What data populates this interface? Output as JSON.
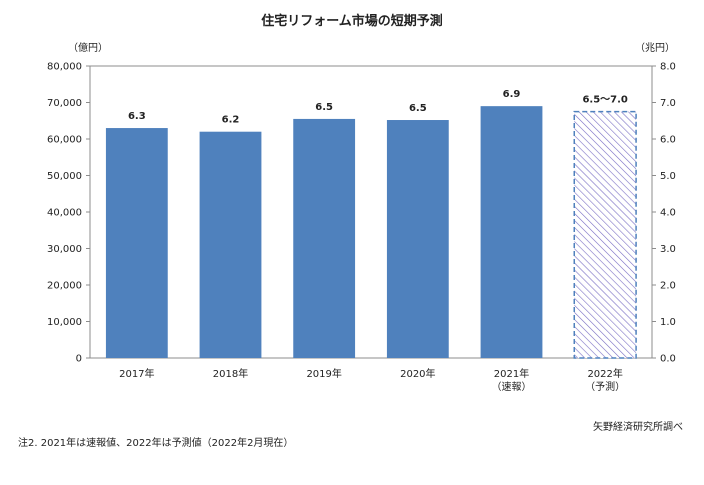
{
  "chart_data": {
    "type": "bar",
    "title": "住宅リフォーム市場の短期予測",
    "left_axis_unit": "（億円）",
    "right_axis_unit": "（兆円）",
    "ylim_left": [
      0,
      80000
    ],
    "ylim_right": [
      0.0,
      8.0
    ],
    "left_ticks": [
      "0",
      "10,000",
      "20,000",
      "30,000",
      "40,000",
      "50,000",
      "60,000",
      "70,000",
      "80,000"
    ],
    "right_ticks": [
      "0.0",
      "1.0",
      "2.0",
      "3.0",
      "4.0",
      "5.0",
      "6.0",
      "7.0",
      "8.0"
    ],
    "grid": false,
    "bars": [
      {
        "category": "2017年",
        "sublabel": "",
        "value": 63000,
        "label": "6.3",
        "style": "solid"
      },
      {
        "category": "2018年",
        "sublabel": "",
        "value": 62000,
        "label": "6.2",
        "style": "solid"
      },
      {
        "category": "2019年",
        "sublabel": "",
        "value": 65500,
        "label": "6.5",
        "style": "solid"
      },
      {
        "category": "2020年",
        "sublabel": "",
        "value": 65200,
        "label": "6.5",
        "style": "solid"
      },
      {
        "category": "2021年",
        "sublabel": "（速報）",
        "value": 69000,
        "label": "6.9",
        "style": "solid"
      },
      {
        "category": "2022年",
        "sublabel": "（予測）",
        "value": 67500,
        "label": "6.5〜7.0",
        "style": "hatched"
      }
    ],
    "colors": {
      "bar": "#4f81bd",
      "hatch_border": "#4f81bd",
      "hatch_line": "#7a6fc4"
    }
  },
  "source": "矢野経済研究所調べ",
  "note": "注2. 2021年は速報値、2022年は予測値（2022年2月現在）"
}
